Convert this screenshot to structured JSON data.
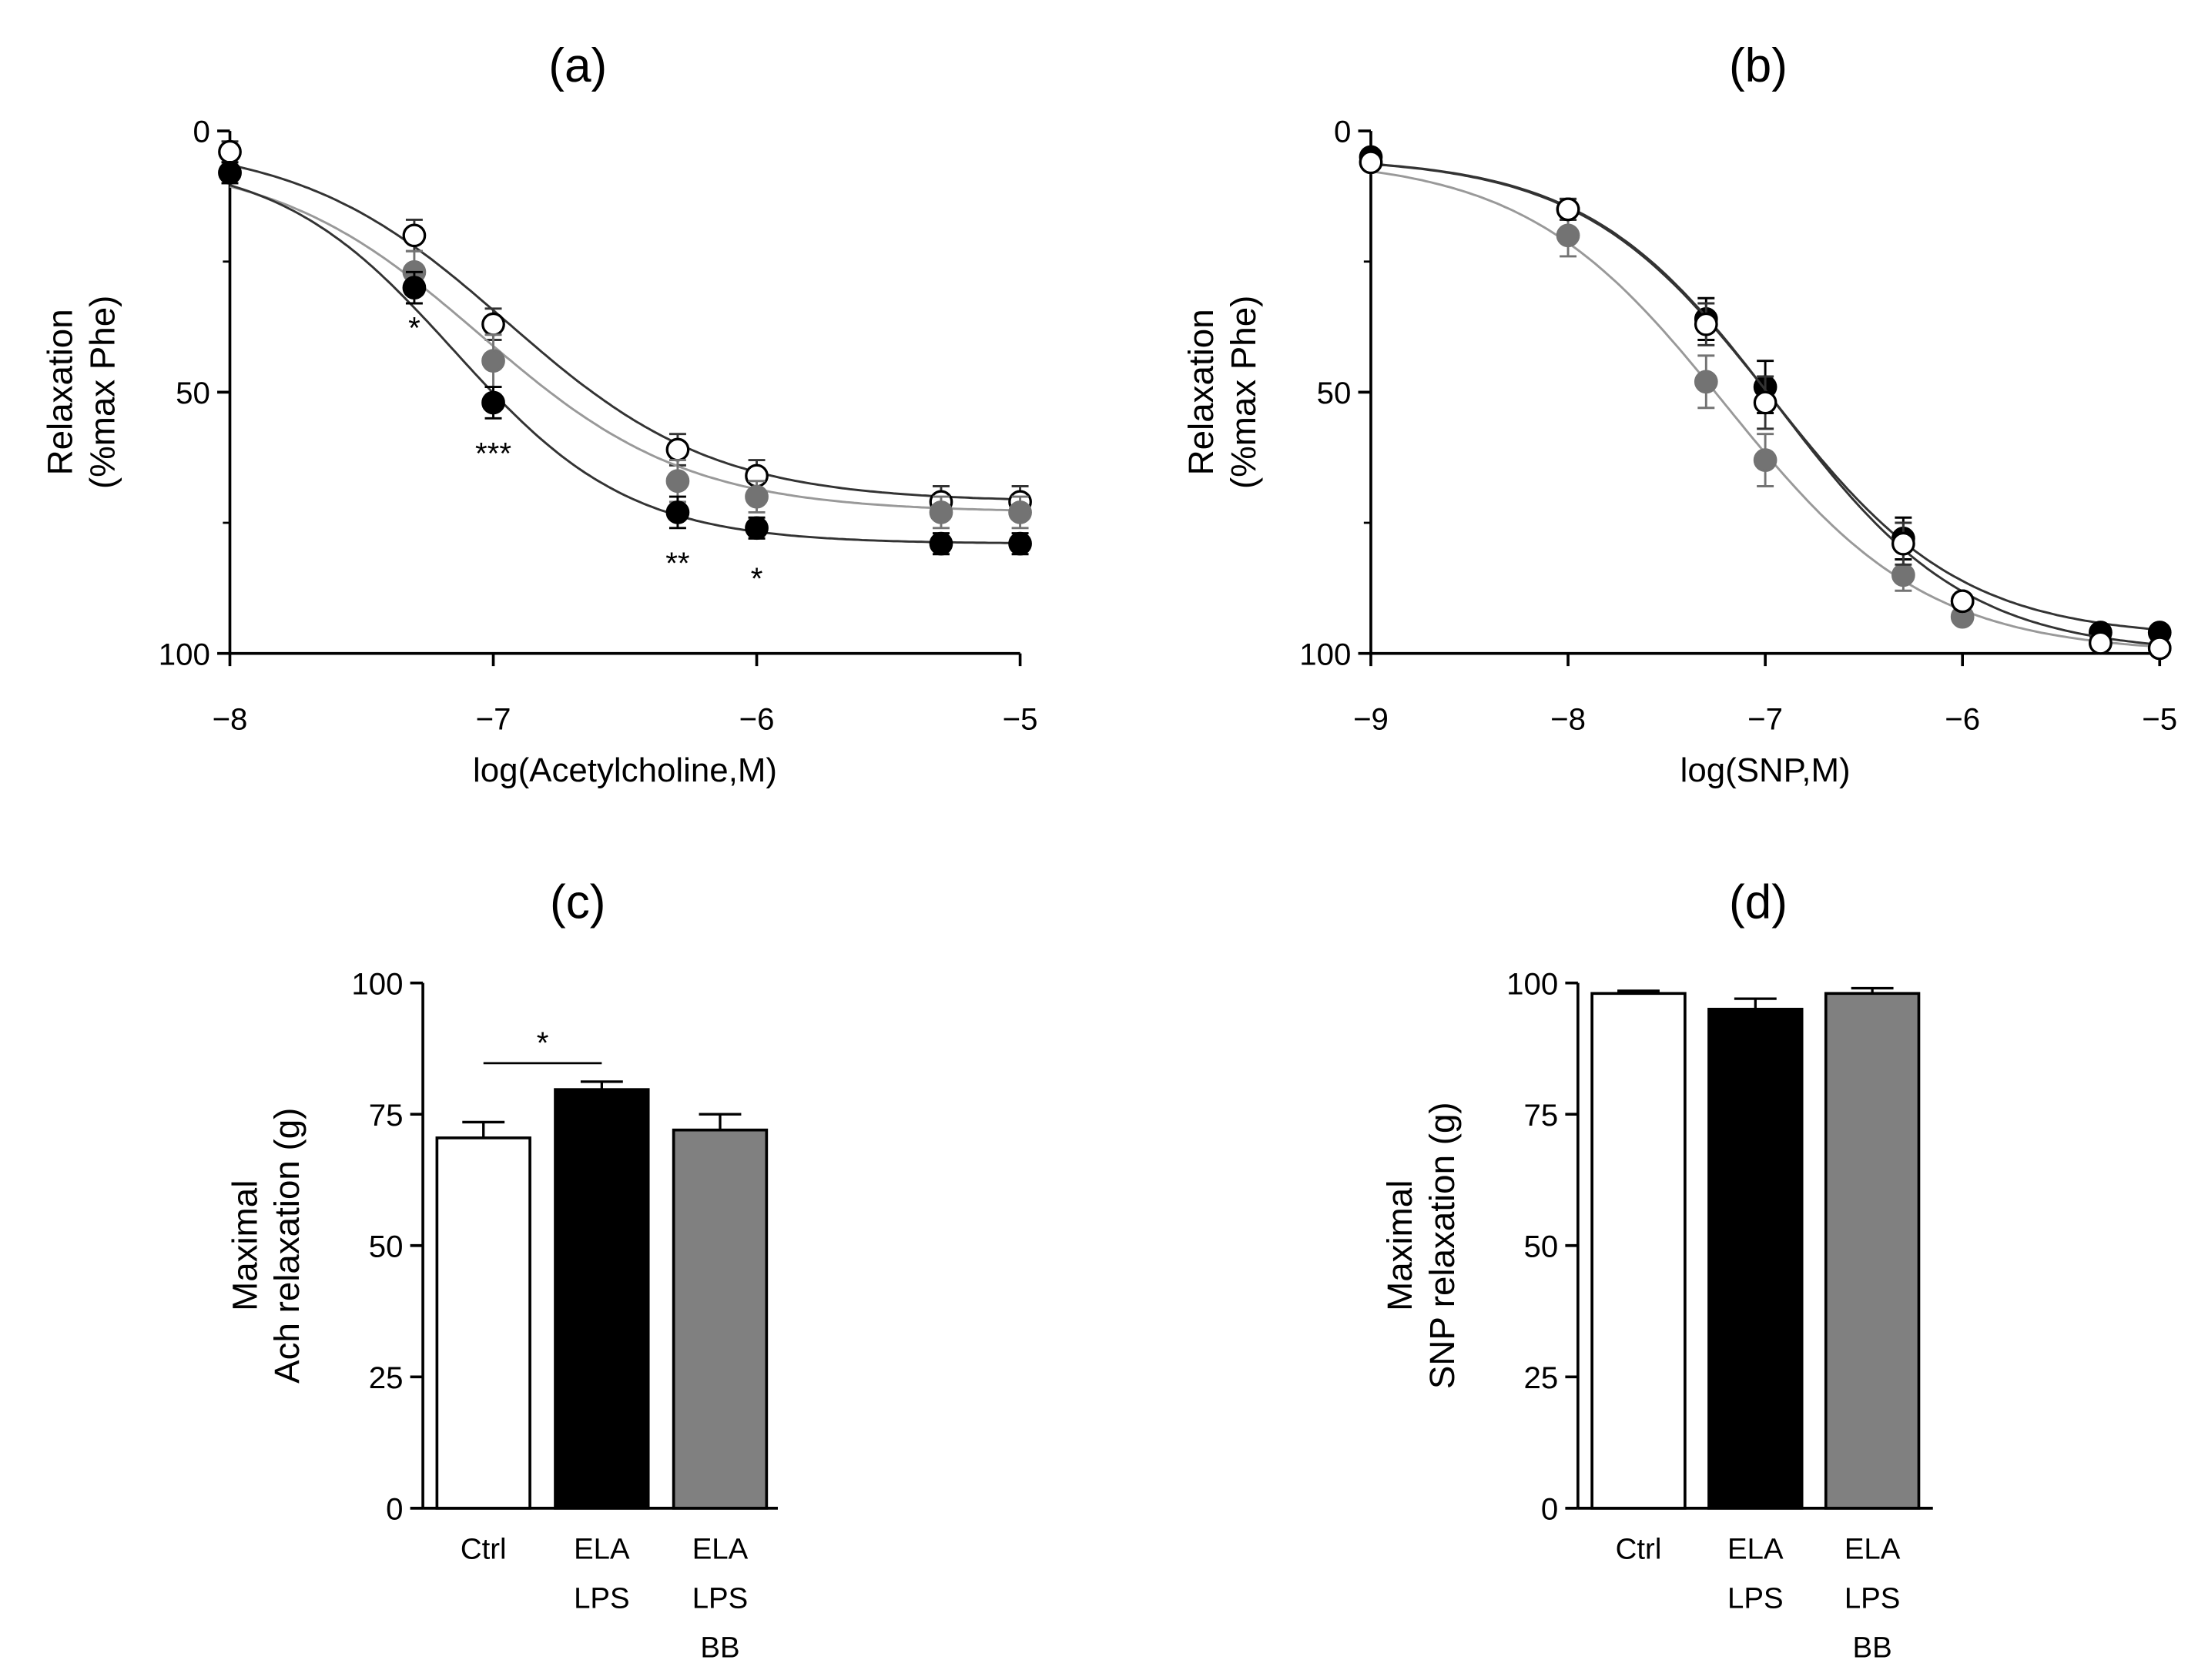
{
  "chart_data": [
    {
      "panel": "(a)",
      "type": "scatter",
      "title": "(a)",
      "xlabel": "log(Acetylcholine,M)",
      "ylabel": [
        "Relaxation",
        "(%max Phe)"
      ],
      "xlim": [
        -8,
        -5
      ],
      "ylim": [
        0,
        100
      ],
      "y_inverted": true,
      "xticks": [
        -8,
        -7,
        -6,
        -5
      ],
      "xtick_labels": [
        "−8",
        "−7",
        "−6",
        "−5"
      ],
      "yticks": [
        0,
        50,
        100
      ],
      "ytick_labels": [
        "0",
        "50",
        "100"
      ],
      "x": [
        -8,
        -7.3,
        -7,
        -6.3,
        -6,
        -5.3,
        -5
      ],
      "series": [
        {
          "name": "Ctrl",
          "fill": "#ffffff",
          "line": "#333333",
          "values": [
            4,
            20,
            37,
            61,
            66,
            71,
            71
          ],
          "errors": [
            2,
            3,
            3,
            3,
            3,
            3,
            3
          ],
          "fit": {
            "top": 2,
            "bottom": 71,
            "logEC50": -6.95,
            "hill": 1.1
          }
        },
        {
          "name": "ELA LPS BB",
          "fill": "#737373",
          "line": "#999999",
          "values": [
            8,
            27,
            44,
            67,
            70,
            73,
            73
          ],
          "errors": [
            2,
            4,
            5,
            4,
            3,
            3,
            3
          ],
          "fit": {
            "top": 5,
            "bottom": 73,
            "logEC50": -7.05,
            "hill": 1.1
          }
        },
        {
          "name": "ELA LPS",
          "fill": "#000000",
          "line": "#333333",
          "values": [
            8,
            30,
            52,
            73,
            76,
            79,
            79
          ],
          "errors": [
            2,
            3,
            3,
            3,
            2,
            2,
            2
          ],
          "fit": {
            "top": 5,
            "bottom": 79,
            "logEC50": -7.15,
            "hill": 1.3
          }
        }
      ],
      "annotations": [
        {
          "x": -7.3,
          "y": 37,
          "text": "*"
        },
        {
          "x": -7,
          "y": 61,
          "text": "***"
        },
        {
          "x": -6.3,
          "y": 82,
          "text": "**"
        },
        {
          "x": -6,
          "y": 85,
          "text": "*"
        }
      ]
    },
    {
      "panel": "(b)",
      "type": "scatter",
      "title": "(b)",
      "xlabel": "log(SNP,M)",
      "ylabel": [
        "Relaxation",
        "(%max Phe)"
      ],
      "xlim": [
        -9,
        -5
      ],
      "ylim": [
        0,
        100
      ],
      "y_inverted": true,
      "xticks": [
        -9,
        -8,
        -7,
        -6,
        -5
      ],
      "xtick_labels": [
        "−9",
        "−8",
        "−7",
        "−6",
        "−5"
      ],
      "yticks": [
        0,
        50,
        100
      ],
      "ytick_labels": [
        "0",
        "50",
        "100"
      ],
      "x": [
        -9,
        -8,
        -7.3,
        -7,
        -6.3,
        -6,
        -5.3,
        -5
      ],
      "series": [
        {
          "name": "ELA LPS BB",
          "fill": "#737373",
          "line": "#999999",
          "values": [
            6,
            20,
            48,
            63,
            85,
            93,
            98,
            99
          ],
          "errors": [
            1,
            4,
            5,
            5,
            3,
            1,
            1,
            1
          ],
          "fit": {
            "top": 5,
            "bottom": 100,
            "logEC50": -7.2,
            "hill": 0.85
          }
        },
        {
          "name": "ELA LPS",
          "fill": "#000000",
          "line": "#333333",
          "values": [
            5,
            15,
            36,
            49,
            78,
            90,
            96,
            96
          ],
          "errors": [
            1,
            2,
            4,
            5,
            4,
            1,
            1,
            1
          ],
          "fit": {
            "top": 5,
            "bottom": 97,
            "logEC50": -6.97,
            "hill": 0.9
          }
        },
        {
          "name": "Ctrl",
          "fill": "#ffffff",
          "line": "#333333",
          "values": [
            6,
            15,
            37,
            52,
            79,
            90,
            98,
            99
          ],
          "errors": [
            1,
            2,
            4,
            5,
            4,
            1,
            1,
            1
          ],
          "fit": {
            "top": 5,
            "bottom": 100,
            "logEC50": -6.94,
            "hill": 0.9
          }
        }
      ],
      "annotations": []
    },
    {
      "panel": "(c)",
      "type": "bar",
      "title": "(c)",
      "ylabel": [
        "Maximal",
        "Ach relaxation (g)"
      ],
      "ylim": [
        0,
        100
      ],
      "yticks": [
        0,
        25,
        50,
        75,
        100
      ],
      "ytick_labels": [
        "0",
        "25",
        "50",
        "75",
        "100"
      ],
      "categories": [
        [
          "Ctrl"
        ],
        [
          "ELA",
          "LPS"
        ],
        [
          "ELA",
          "LPS",
          "BB"
        ]
      ],
      "values": [
        70.5,
        79.7,
        72
      ],
      "errors": [
        3,
        1.5,
        3
      ],
      "colors": [
        "#ffffff",
        "#000000",
        "#808080"
      ],
      "significance": [
        {
          "from": 0,
          "to": 1,
          "text": "*"
        }
      ]
    },
    {
      "panel": "(d)",
      "type": "bar",
      "title": "(d)",
      "ylabel": [
        "Maximal",
        "SNP relaxation (g)"
      ],
      "ylim": [
        0,
        100
      ],
      "yticks": [
        0,
        25,
        50,
        75,
        100
      ],
      "ytick_labels": [
        "0",
        "25",
        "50",
        "75",
        "100"
      ],
      "categories": [
        [
          "Ctrl"
        ],
        [
          "ELA",
          "LPS"
        ],
        [
          "ELA",
          "LPS",
          "BB"
        ]
      ],
      "values": [
        98,
        95,
        98
      ],
      "errors": [
        0.5,
        2,
        1
      ],
      "colors": [
        "#ffffff",
        "#000000",
        "#808080"
      ],
      "significance": []
    }
  ]
}
